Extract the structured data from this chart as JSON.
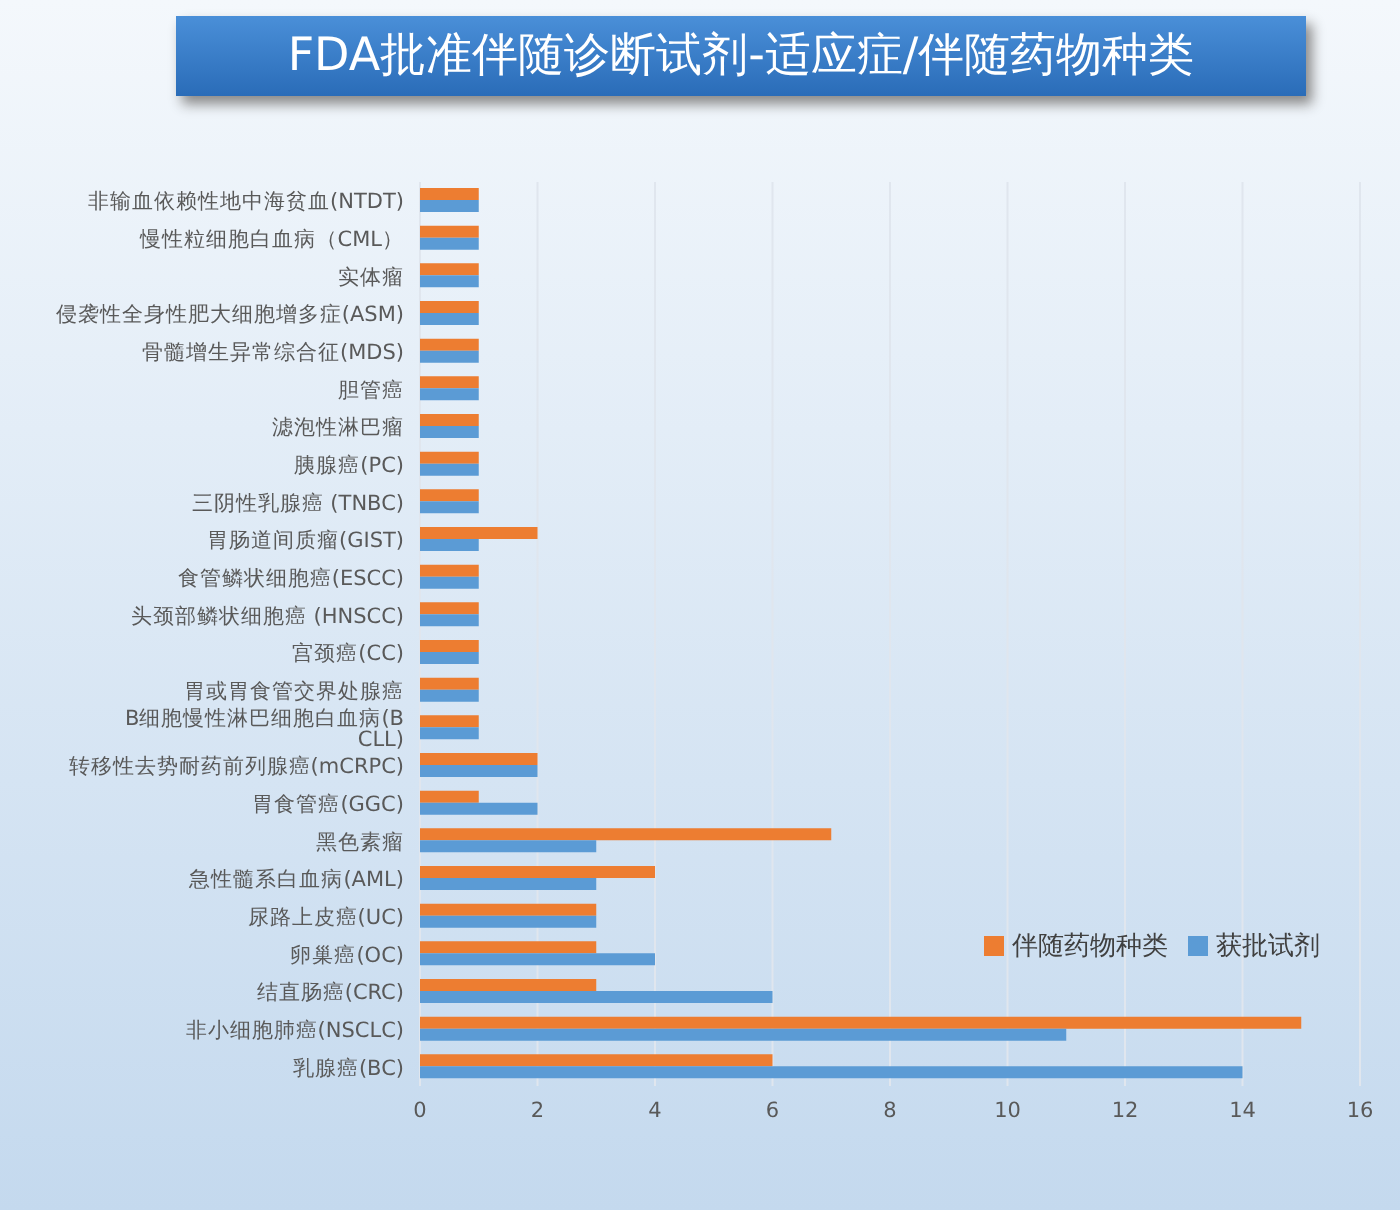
{
  "chart_data": {
    "type": "bar",
    "orientation": "horizontal",
    "title": "FDA批准伴随诊断试剂-适应症/伴随药物种类",
    "categories": [
      "非输血依赖性地中海贫血(NTDT)",
      "慢性粒细胞白血病（CML）",
      "实体瘤",
      "侵袭性全身性肥大细胞增多症(ASM)",
      "骨髓增生异常综合征(MDS)",
      "胆管癌",
      "滤泡性淋巴瘤",
      "胰腺癌(PC)",
      "三阴性乳腺癌 (TNBC)",
      "胃肠道间质瘤(GIST)",
      "食管鳞状细胞癌(ESCC)",
      "头颈部鳞状细胞癌 (HNSCC)",
      "宫颈癌(CC)",
      "胃或胃食管交界处腺癌",
      "B细胞慢性淋巴细胞白血病(B CLL)",
      "转移性去势耐药前列腺癌(mCRPC)",
      "胃食管癌(GGC)",
      "黑色素瘤",
      "急性髓系白血病(AML)",
      "尿路上皮癌(UC)",
      "卵巢癌(OC)",
      "结直肠癌(CRC)",
      "非小细胞肺癌(NSCLC)",
      "乳腺癌(BC)"
    ],
    "series": [
      {
        "name": "伴随药物种类",
        "color": "#ed7d31",
        "values": [
          1,
          1,
          1,
          1,
          1,
          1,
          1,
          1,
          1,
          2,
          1,
          1,
          1,
          1,
          1,
          2,
          1,
          7,
          4,
          3,
          3,
          3,
          15,
          6
        ]
      },
      {
        "name": "获批试剂",
        "color": "#5b9bd5",
        "values": [
          1,
          1,
          1,
          1,
          1,
          1,
          1,
          1,
          1,
          1,
          1,
          1,
          1,
          1,
          1,
          2,
          2,
          3,
          3,
          3,
          4,
          6,
          11,
          14
        ]
      }
    ],
    "xlim": [
      0,
      16
    ],
    "xticks": [
      0,
      2,
      4,
      6,
      8,
      10,
      12,
      14,
      16
    ],
    "grid": "x",
    "legend": "right"
  }
}
